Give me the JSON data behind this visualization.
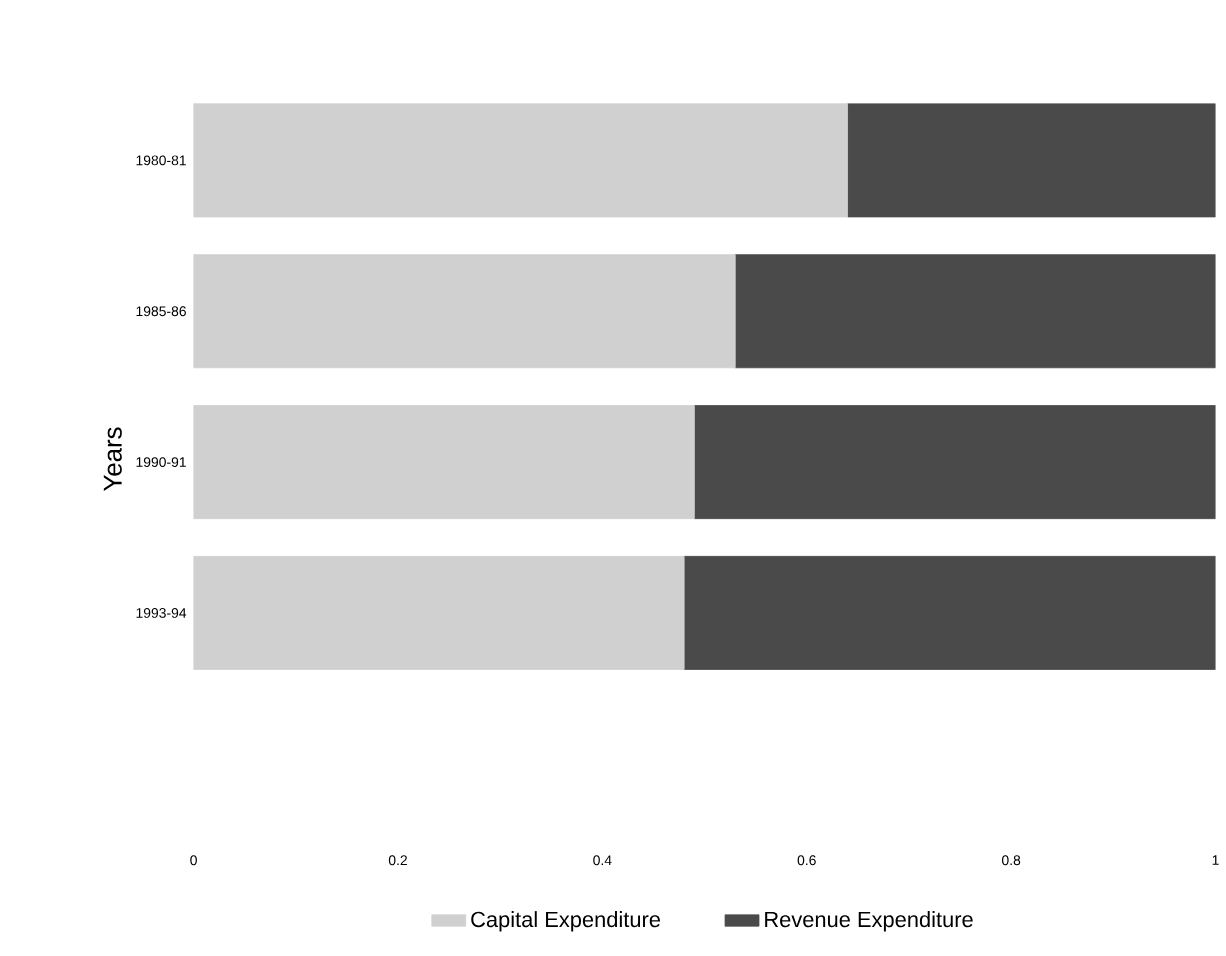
{
  "chart_data": {
    "type": "bar",
    "orientation": "horizontal",
    "stacked": true,
    "ylabel": "Years",
    "categories": [
      "1980-81",
      "1985-86",
      "1990-91",
      "1993-94"
    ],
    "series": [
      {
        "name": "Capital Expenditure",
        "color": "#d0d0d0",
        "values": [
          0.64,
          0.53,
          0.49,
          0.48
        ]
      },
      {
        "name": "Revenue Expenditure",
        "color": "#4a4a4a",
        "values": [
          0.36,
          0.47,
          0.51,
          0.52
        ]
      }
    ],
    "xlim": [
      0,
      1
    ],
    "xticks": [
      0,
      0.2,
      0.4,
      0.6,
      0.8,
      1
    ],
    "legend": "bottom",
    "grid": false
  }
}
